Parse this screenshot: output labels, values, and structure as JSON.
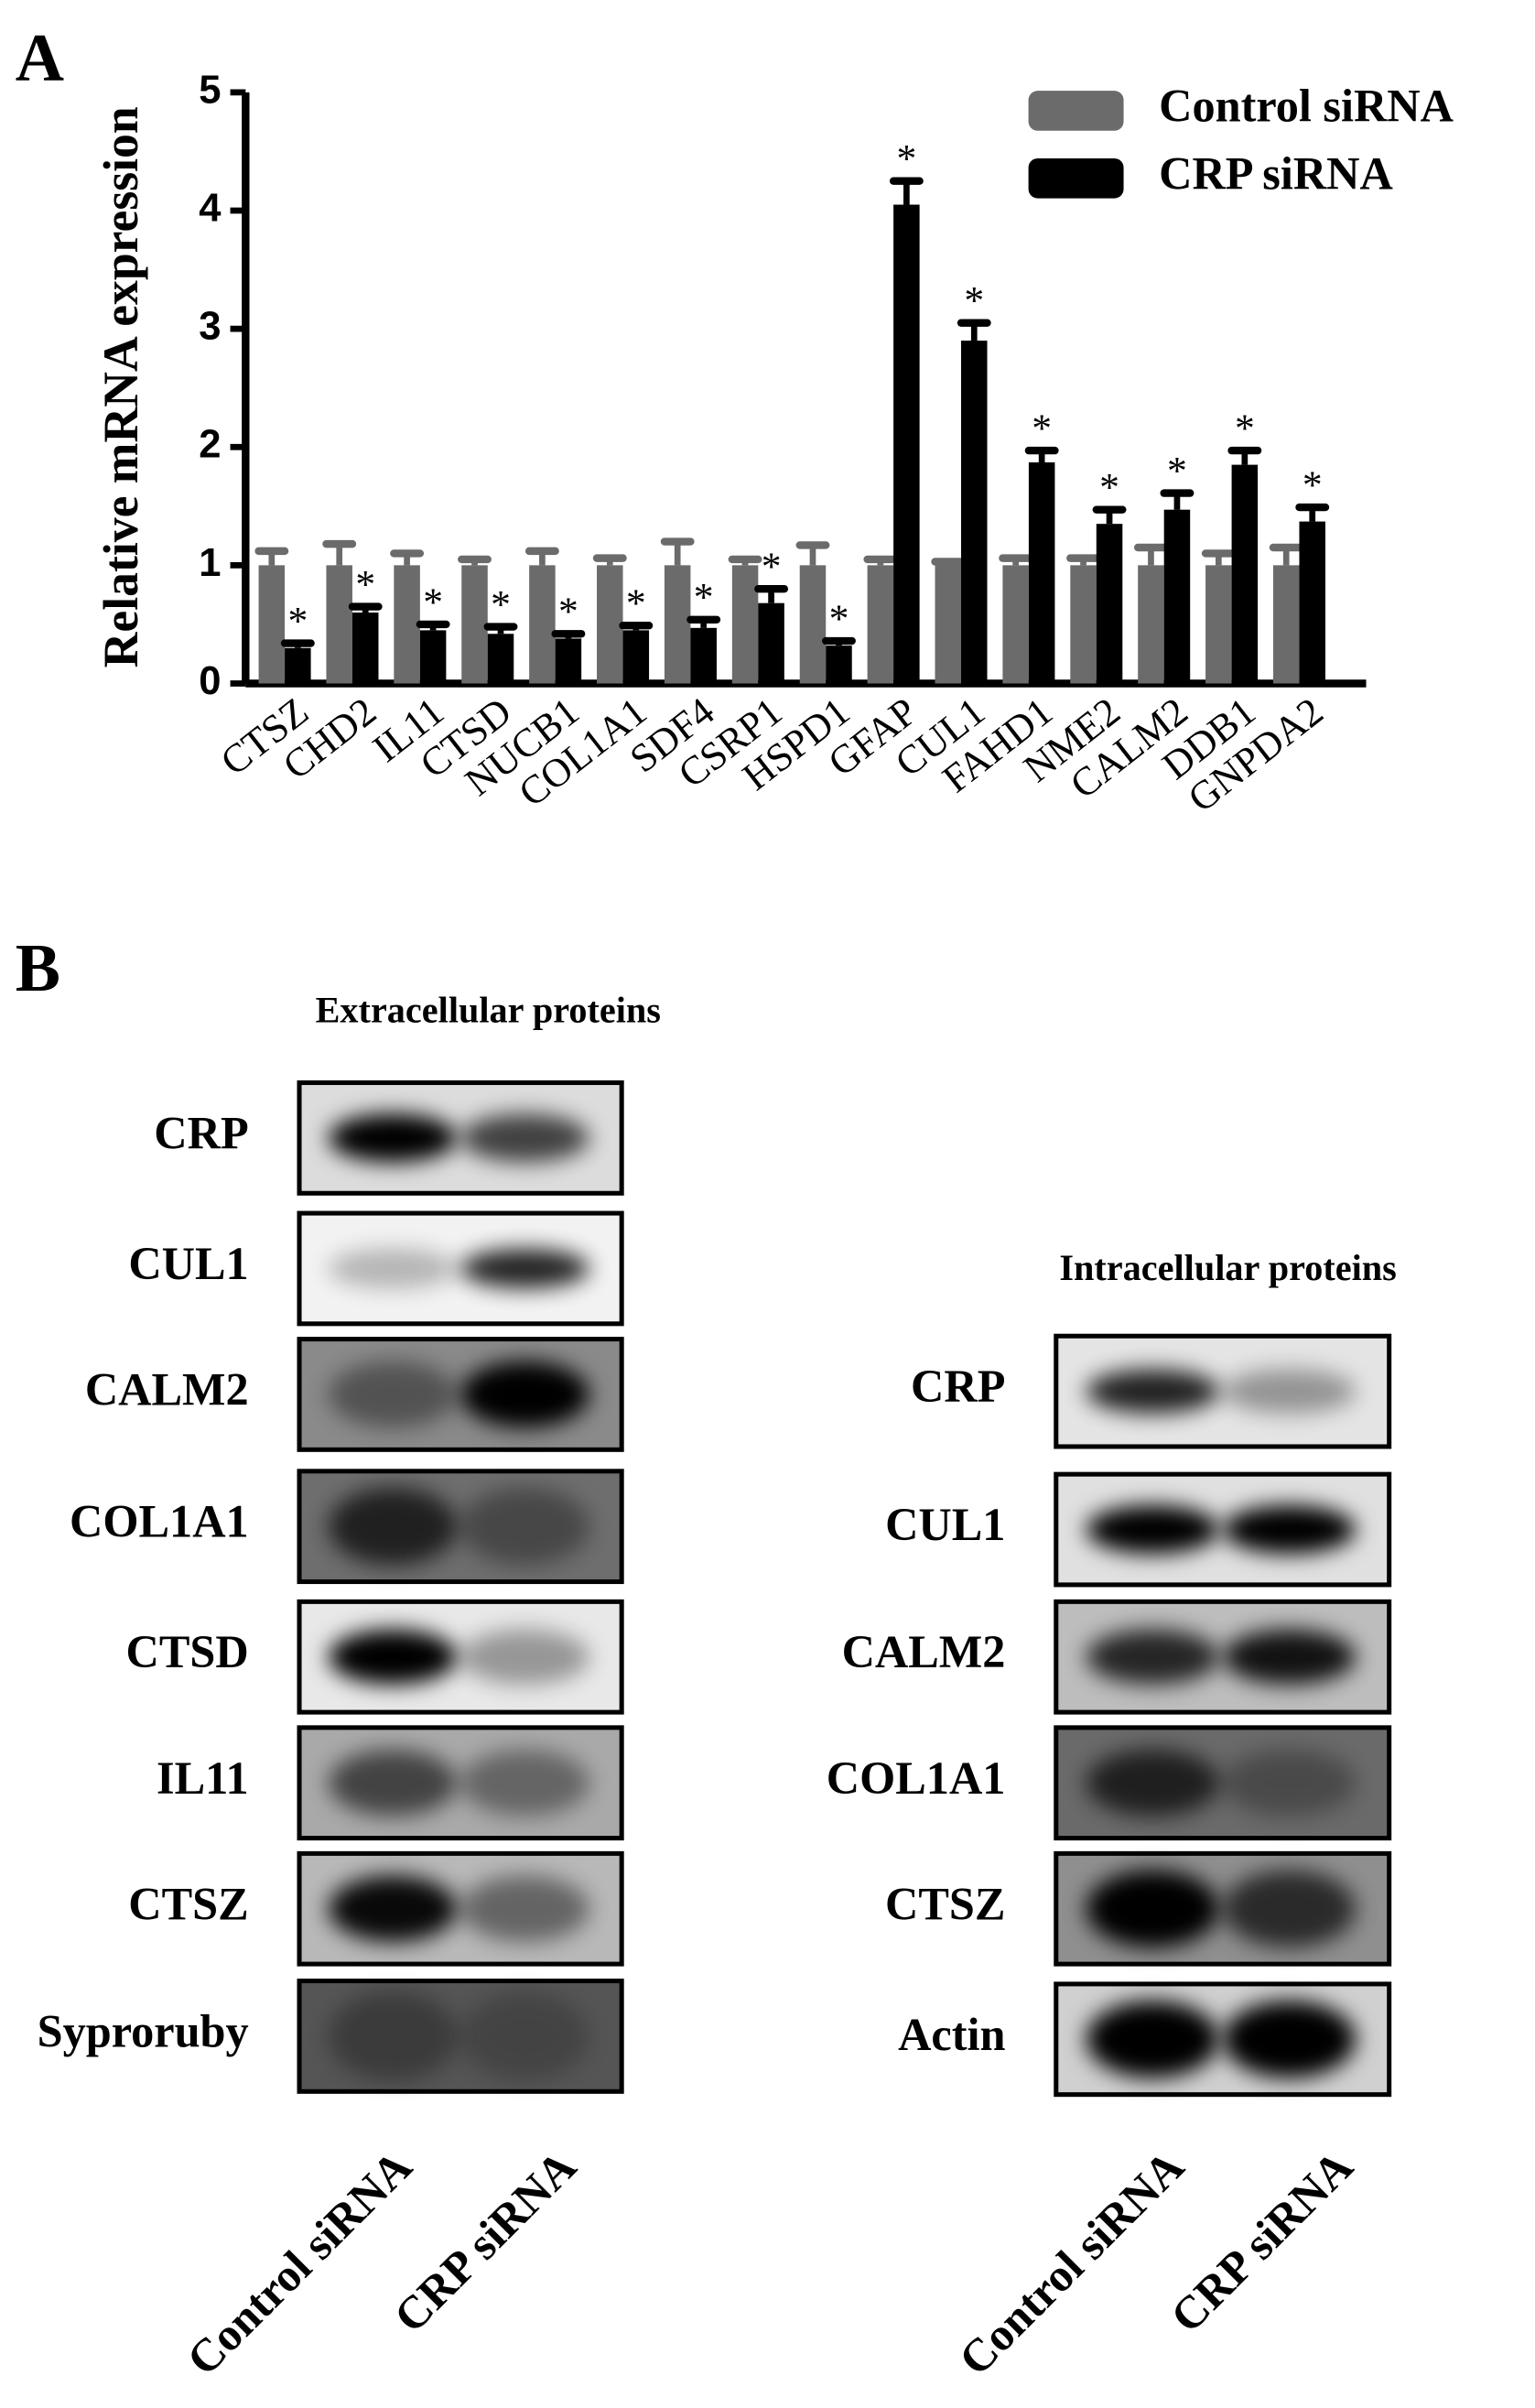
{
  "panel_labels": [
    "A",
    "B"
  ],
  "chart_data": {
    "type": "bar",
    "y_label": "Relative mRNA expression",
    "categories": [
      "CTSZ",
      "CHD2",
      "IL11",
      "CTSD",
      "NUCB1",
      "COL1A1",
      "SDF4",
      "CSRP1",
      "HSPD1",
      "GFAP",
      "CUL1",
      "FAHD1",
      "NME2",
      "CALM2",
      "DDB1",
      "GNPDA2"
    ],
    "series": [
      {
        "name": "Control siRNA",
        "color": "#6b6b6b",
        "values": [
          1,
          1,
          1,
          1,
          1,
          1,
          1,
          1,
          1,
          1,
          1,
          1,
          1,
          1,
          1,
          1
        ],
        "errors": [
          0.12,
          0.18,
          0.1,
          0.05,
          0.12,
          0.06,
          0.2,
          0.05,
          0.17,
          0.05,
          0.03,
          0.06,
          0.06,
          0.15,
          0.1,
          0.15
        ]
      },
      {
        "name": "CRP  siRNA",
        "color": "#000000",
        "values": [
          0.3,
          0.6,
          0.45,
          0.42,
          0.38,
          0.45,
          0.47,
          0.68,
          0.32,
          4.05,
          2.9,
          1.87,
          1.35,
          1.47,
          1.85,
          1.37
        ],
        "errors": [
          0.04,
          0.05,
          0.05,
          0.06,
          0.04,
          0.04,
          0.07,
          0.12,
          0.04,
          0.2,
          0.15,
          0.1,
          0.12,
          0.14,
          0.12,
          0.12
        ]
      }
    ],
    "significance_marker": "*",
    "ylim": [
      0,
      5
    ],
    "yticks": [
      0,
      1,
      2,
      3,
      4,
      5
    ],
    "legend": "top-right"
  },
  "blots": {
    "extracellular": {
      "title": "Extracellular proteins",
      "rows": [
        "CRP",
        "CUL1",
        "CALM2",
        "COL1A1",
        "CTSD",
        "IL11",
        "CTSZ",
        "Syproruby"
      ]
    },
    "intracellular": {
      "title": "Intracellular proteins",
      "rows": [
        "CRP",
        "CUL1",
        "CALM2",
        "COL1A1",
        "CTSZ",
        "Actin"
      ]
    },
    "lanes": [
      "Control siRNA",
      "CRP siRNA"
    ]
  }
}
